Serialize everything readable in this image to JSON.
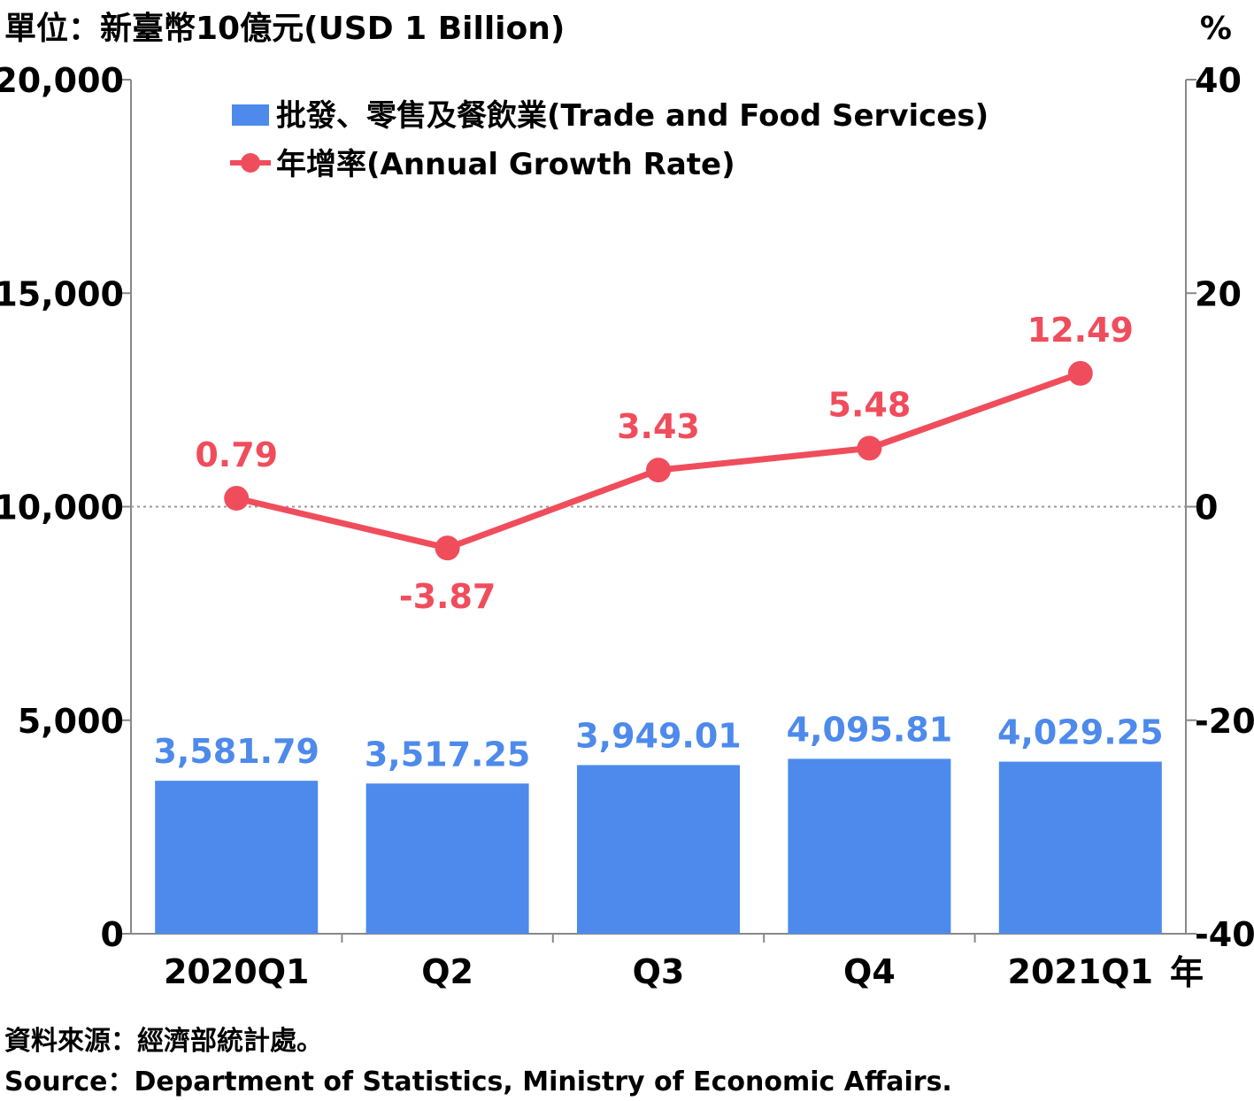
{
  "unit_left": "單位：新臺幣10億元(USD 1 Billion)",
  "unit_right": "%",
  "year_suffix": "年",
  "source_zh": "資料來源：經濟部統計處。",
  "source_en": "Source：Department of Statistics, Ministry of Economic Affairs.",
  "colors": {
    "bar": "#4d8aeb",
    "line": "#f04d5c",
    "axis": "#888888"
  },
  "chart_data": {
    "type": "bar",
    "categories": [
      "2020Q1",
      "Q2",
      "Q3",
      "Q4",
      "2021Q1"
    ],
    "series": [
      {
        "name": "批發、零售及餐飲業(Trade and Food Services)",
        "type": "bar",
        "axis": "left",
        "values": [
          3581.79,
          3517.25,
          3949.01,
          4095.81,
          4029.25
        ],
        "labels": [
          "3,581.79",
          "3,517.25",
          "3,949.01",
          "4,095.81",
          "4,029.25"
        ]
      },
      {
        "name": "年增率(Annual Growth Rate)",
        "type": "line",
        "axis": "right",
        "values": [
          0.79,
          -3.87,
          3.43,
          5.48,
          12.49
        ],
        "labels": [
          "0.79",
          "-3.87",
          "3.43",
          "5.48",
          "12.49"
        ]
      }
    ],
    "y_left": {
      "ylim": [
        0,
        20000
      ],
      "ticks": [
        0,
        5000,
        10000,
        15000,
        20000
      ],
      "tick_labels": [
        "0",
        "5,000",
        "10,000",
        "15,000",
        "20,000"
      ]
    },
    "y_right": {
      "ylim": [
        -40,
        40
      ],
      "ticks": [
        -40,
        -20,
        0,
        20,
        40
      ],
      "tick_labels": [
        "-40",
        "-20",
        "0",
        "20",
        "40"
      ]
    },
    "zero_reference_line": true,
    "legend_position": "top-left"
  }
}
